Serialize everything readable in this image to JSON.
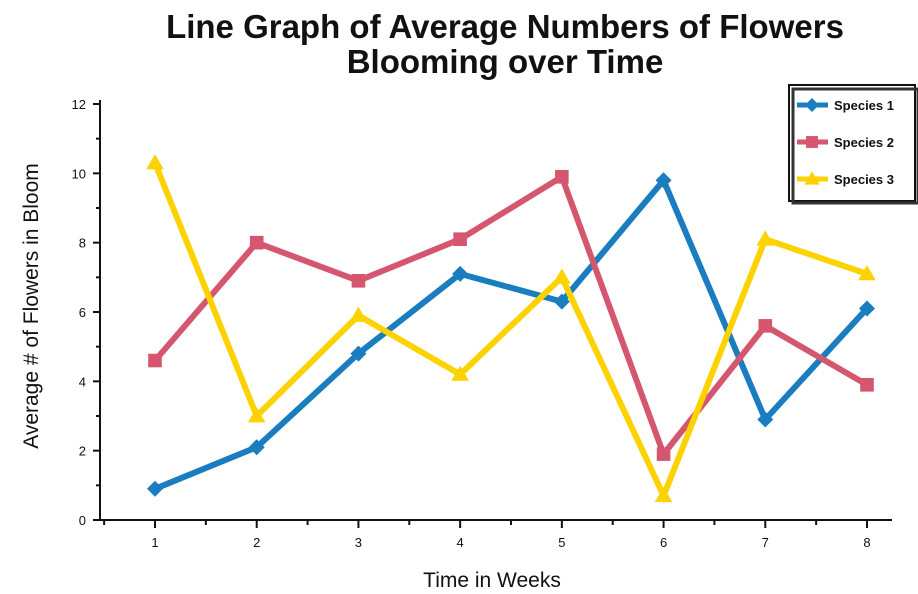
{
  "chart_data": {
    "type": "line",
    "title_lines": [
      "Line Graph of Average Numbers of Flowers",
      "Blooming over Time"
    ],
    "xlabel": "Time in Weeks",
    "ylabel": "Average # of Flowers in Bloom",
    "x": [
      1,
      2,
      3,
      4,
      5,
      6,
      7,
      8
    ],
    "x_tick_labels": [
      "1",
      "2",
      "3",
      "4",
      "5",
      "6",
      "7",
      "8"
    ],
    "ylim": [
      0,
      12
    ],
    "y_ticks": [
      0,
      2,
      4,
      6,
      8,
      10,
      12
    ],
    "y_tick_labels": [
      "0",
      "2",
      "4",
      "6",
      "8",
      "10",
      "12"
    ],
    "grid": false,
    "legend_position": "top-right",
    "series": [
      {
        "name": "Species 1",
        "marker": "diamond",
        "color": "#1a7dbf",
        "values": [
          0.9,
          2.1,
          4.8,
          7.1,
          6.3,
          9.8,
          2.9,
          6.1
        ]
      },
      {
        "name": "Species 2",
        "marker": "square",
        "color": "#d4576f",
        "values": [
          4.6,
          8.0,
          6.9,
          8.1,
          9.9,
          1.9,
          5.6,
          3.9
        ]
      },
      {
        "name": "Species 3",
        "marker": "triangle",
        "color": "#fcd200",
        "values": [
          10.3,
          3.0,
          5.9,
          4.2,
          7.0,
          0.7,
          8.1,
          7.1
        ]
      }
    ]
  }
}
